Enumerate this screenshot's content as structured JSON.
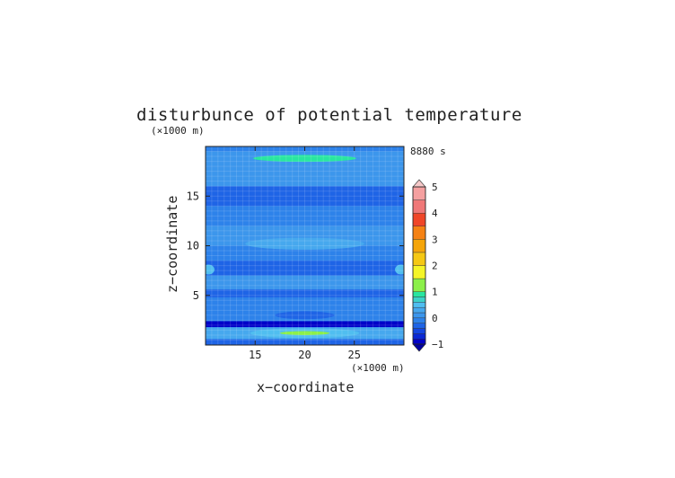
{
  "chart_data": {
    "type": "heatmap",
    "title": "disturbunce of potential temperature",
    "time_label": "8880 s",
    "xlabel": "x−coordinate",
    "ylabel": "z−coordinate",
    "x_unit": "(×1000 m)",
    "y_unit": "(×1000 m)",
    "xlim": [
      10,
      30
    ],
    "ylim": [
      0,
      20
    ],
    "x_ticks": [
      15,
      20,
      25
    ],
    "y_ticks": [
      5,
      10,
      15
    ],
    "grid": true,
    "colorbar": {
      "min": -1,
      "max": 5,
      "tick_values": [
        -1,
        0,
        1,
        2,
        3,
        4,
        5
      ],
      "levels": [
        {
          "from": -1.0,
          "to": -0.8,
          "color": "#0000c8"
        },
        {
          "from": -0.8,
          "to": -0.6,
          "color": "#0a28d6"
        },
        {
          "from": -0.6,
          "to": -0.4,
          "color": "#1446e0"
        },
        {
          "from": -0.4,
          "to": -0.2,
          "color": "#1e64e6"
        },
        {
          "from": -0.2,
          "to": 0.0,
          "color": "#2d82ea"
        },
        {
          "from": 0.0,
          "to": 0.2,
          "color": "#3c96ec"
        },
        {
          "from": 0.2,
          "to": 0.4,
          "color": "#46a8ee"
        },
        {
          "from": 0.4,
          "to": 0.6,
          "color": "#50bef0"
        },
        {
          "from": 0.6,
          "to": 0.8,
          "color": "#3cd2c8"
        },
        {
          "from": 0.8,
          "to": 1.0,
          "color": "#28e6a0"
        },
        {
          "from": 1.0,
          "to": 1.5,
          "color": "#8cf04a"
        },
        {
          "from": 1.5,
          "to": 2.0,
          "color": "#f5f528"
        },
        {
          "from": 2.0,
          "to": 2.5,
          "color": "#f5c814"
        },
        {
          "from": 2.5,
          "to": 3.0,
          "color": "#f5a50a"
        },
        {
          "from": 3.0,
          "to": 3.5,
          "color": "#f58214"
        },
        {
          "from": 3.5,
          "to": 4.0,
          "color": "#f04628"
        },
        {
          "from": 4.0,
          "to": 4.5,
          "color": "#f07878"
        },
        {
          "from": 4.5,
          "to": 5.0,
          "color": "#f5a0a0"
        }
      ],
      "under_color": "#0000a0",
      "over_color": "#f5c8c8"
    },
    "field_summary": {
      "background_value": -0.1,
      "bands": [
        {
          "z": [
            0.0,
            0.6
          ],
          "value": -0.3
        },
        {
          "z": [
            0.6,
            1.8
          ],
          "value": 0.3
        },
        {
          "z": [
            1.8,
            2.4
          ],
          "value": -0.9
        },
        {
          "z": [
            2.4,
            4.8
          ],
          "value": -0.2
        },
        {
          "z": [
            4.8,
            5.6
          ],
          "value": -0.4
        },
        {
          "z": [
            5.6,
            7.0
          ],
          "value": 0.0
        },
        {
          "z": [
            7.0,
            8.5
          ],
          "value": -0.3
        },
        {
          "z": [
            8.5,
            10.0
          ],
          "value": -0.2
        },
        {
          "z": [
            10.0,
            12.0
          ],
          "value": 0.1
        },
        {
          "z": [
            12.0,
            14.0
          ],
          "value": -0.1
        },
        {
          "z": [
            14.0,
            16.0
          ],
          "value": -0.3
        },
        {
          "z": [
            16.0,
            18.0
          ],
          "value": 0.0
        },
        {
          "z": [
            18.0,
            19.5
          ],
          "value": 0.1
        },
        {
          "z": [
            19.5,
            20.0
          ],
          "value": -0.1
        }
      ],
      "features": [
        {
          "x": 20.0,
          "z": 18.8,
          "rx": 5.2,
          "rz": 0.35,
          "value": 0.9
        },
        {
          "x": 20.0,
          "z": 1.2,
          "rx": 5.5,
          "rz": 0.5,
          "value": 0.5
        },
        {
          "x": 20.0,
          "z": 1.2,
          "rx": 2.5,
          "rz": 0.2,
          "value": 1.3
        },
        {
          "x": 20.0,
          "z": 14.8,
          "rx": 9.0,
          "rz": 0.7,
          "value": -0.4
        },
        {
          "x": 20.0,
          "z": 10.2,
          "rx": 6.0,
          "rz": 0.6,
          "value": 0.2
        },
        {
          "x": 10.3,
          "z": 7.6,
          "rx": 0.6,
          "rz": 0.5,
          "value": 0.4
        },
        {
          "x": 29.7,
          "z": 7.6,
          "rx": 0.6,
          "rz": 0.5,
          "value": 0.4
        },
        {
          "x": 20.0,
          "z": 3.0,
          "rx": 3.0,
          "rz": 0.4,
          "value": -0.4
        }
      ]
    }
  }
}
